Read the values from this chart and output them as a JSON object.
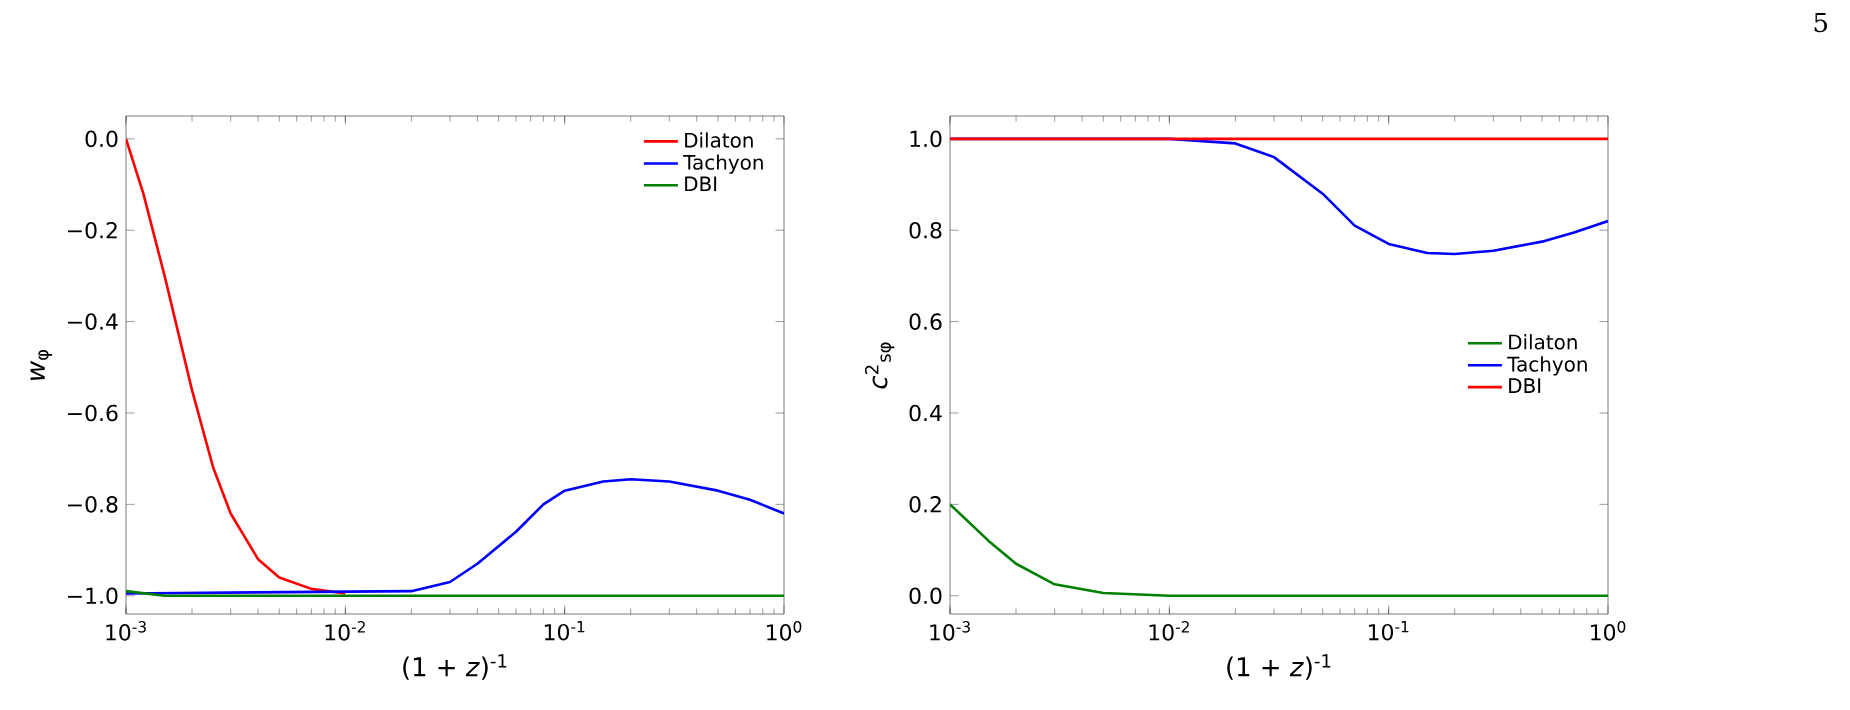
{
  "chart_data": [
    {
      "type": "line",
      "log": "x",
      "xlabel": "(1 + *z*)$^{-1}$",
      "ylabel": "*w*$_{φ}$",
      "xlim": [
        0.001,
        1
      ],
      "ylim": [
        -1.04,
        0.05
      ],
      "xticks": [
        {
          "value": 0.001,
          "label": "10$^{-3}$"
        },
        {
          "value": 0.01,
          "label": "10$^{-2}$"
        },
        {
          "value": 0.1,
          "label": "10$^{-1}$"
        },
        {
          "value": 1,
          "label": "10$^{0}$"
        }
      ],
      "yticks": [
        {
          "value": -1.0,
          "label": "−1.0"
        },
        {
          "value": -0.8,
          "label": "−0.8"
        },
        {
          "value": -0.6,
          "label": "−0.6"
        },
        {
          "value": -0.4,
          "label": "−0.4"
        },
        {
          "value": -0.2,
          "label": "−0.2"
        },
        {
          "value": 0,
          "label": "0.0"
        }
      ],
      "legend": "top right",
      "grid": false,
      "series": [
        {
          "name": "Dilaton",
          "color": "#ff0000",
          "x": [
            0.001,
            0.0012,
            0.0015,
            0.002,
            0.0025,
            0.003,
            0.004,
            0.005,
            0.007,
            0.01
          ],
          "values": [
            0,
            -0.12,
            -0.3,
            -0.55,
            -0.72,
            -0.82,
            -0.92,
            -0.96,
            -0.985,
            -0.995
          ]
        },
        {
          "name": "Tachyon",
          "color": "#0000ff",
          "x": [
            0.001,
            0.02,
            0.03,
            0.04,
            0.06,
            0.08,
            0.1,
            0.15,
            0.2,
            0.3,
            0.5,
            0.7,
            1
          ],
          "values": [
            -0.995,
            -0.99,
            -0.97,
            -0.93,
            -0.86,
            -0.8,
            -0.77,
            -0.75,
            -0.745,
            -0.75,
            -0.77,
            -0.79,
            -0.82
          ]
        },
        {
          "name": "DBI",
          "color": "#008000",
          "x": [
            0.001,
            0.0015,
            1
          ],
          "values": [
            -0.99,
            -1.0,
            -1.0
          ]
        }
      ]
    },
    {
      "type": "line",
      "log": "x",
      "xlabel": "(1 + *z*)$^{-1}$",
      "ylabel": "*c*$^{2}$$_{sφ}$",
      "xlim": [
        0.001,
        1
      ],
      "ylim": [
        -0.04,
        1.05
      ],
      "xticks": [
        {
          "value": 0.001,
          "label": "10$^{-3}$"
        },
        {
          "value": 0.01,
          "label": "10$^{-2}$"
        },
        {
          "value": 0.1,
          "label": "10$^{-1}$"
        },
        {
          "value": 1,
          "label": "10$^{0}$"
        }
      ],
      "yticks": [
        {
          "value": 0,
          "label": "0.0"
        },
        {
          "value": 0.2,
          "label": "0.2"
        },
        {
          "value": 0.4,
          "label": "0.4"
        },
        {
          "value": 0.6,
          "label": "0.6"
        },
        {
          "value": 0.8,
          "label": "0.8"
        },
        {
          "value": 1.0,
          "label": "1.0"
        }
      ],
      "legend": "right",
      "grid": false,
      "annotations": [
        "5"
      ],
      "series": [
        {
          "name": "Dilaton",
          "color": "#008000",
          "x": [
            0.001,
            0.0015,
            0.002,
            0.003,
            0.005,
            0.01,
            1
          ],
          "values": [
            0.2,
            0.12,
            0.07,
            0.025,
            0.006,
            0.0,
            0.0
          ]
        },
        {
          "name": "Tachyon",
          "color": "#0000ff",
          "x": [
            0.001,
            0.01,
            0.02,
            0.03,
            0.05,
            0.07,
            0.1,
            0.15,
            0.2,
            0.3,
            0.5,
            0.7,
            1
          ],
          "values": [
            1.0,
            1.0,
            0.99,
            0.96,
            0.88,
            0.81,
            0.77,
            0.75,
            0.748,
            0.755,
            0.775,
            0.795,
            0.82
          ]
        },
        {
          "name": "DBI",
          "color": "#ff0000",
          "x": [
            0.001,
            1
          ],
          "values": [
            1.0,
            1.0
          ]
        }
      ]
    }
  ]
}
